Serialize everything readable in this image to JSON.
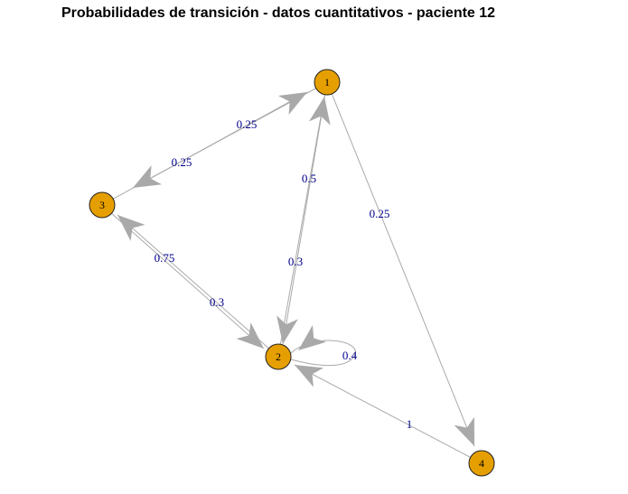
{
  "title": "Probabilidades de transición - datos cuantitativos - paciente 12",
  "colors": {
    "node_fill": "#E69F00",
    "node_stroke": "#222222",
    "edge": "#A9A9A9",
    "edge_label": "#00008B"
  },
  "nodes": [
    {
      "id": "1",
      "label": "1"
    },
    {
      "id": "2",
      "label": "2"
    },
    {
      "id": "3",
      "label": "3"
    },
    {
      "id": "4",
      "label": "4"
    }
  ],
  "edges": [
    {
      "from": "1",
      "to": "3",
      "label": "0.25"
    },
    {
      "from": "3",
      "to": "1",
      "label": "0.25"
    },
    {
      "from": "2",
      "to": "1",
      "label": "0.5"
    },
    {
      "from": "1",
      "to": "2",
      "label": "0.3"
    },
    {
      "from": "1",
      "to": "4",
      "label": "0.25"
    },
    {
      "from": "3",
      "to": "2",
      "label": "0.75"
    },
    {
      "from": "2",
      "to": "3",
      "label": "0.3"
    },
    {
      "from": "2",
      "to": "2",
      "label": "0.4"
    },
    {
      "from": "4",
      "to": "2",
      "label": "1"
    }
  ]
}
